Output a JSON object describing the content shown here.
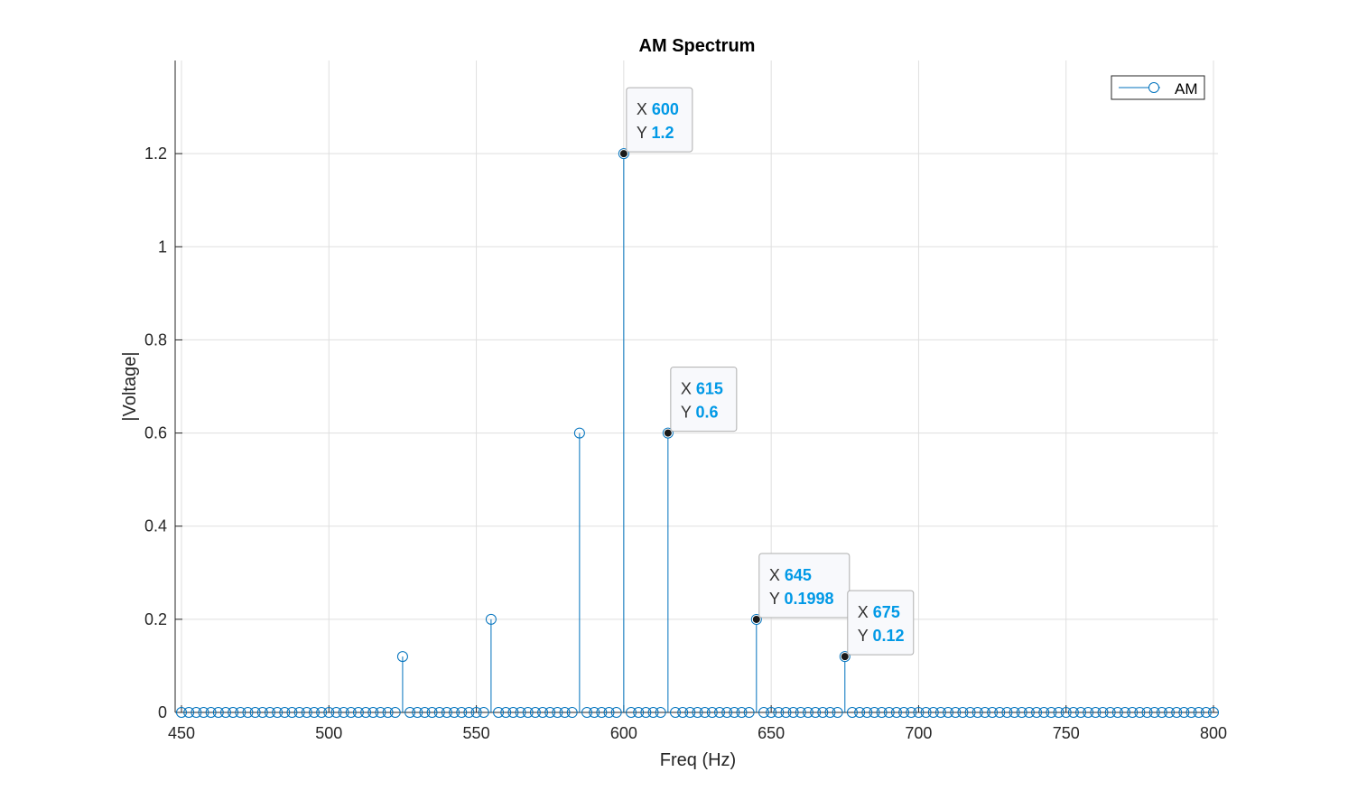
{
  "chart_data": {
    "type": "stem",
    "title": "AM Spectrum",
    "xlabel": "Freq (Hz)",
    "ylabel": "|Voltage|",
    "xlim": [
      450,
      800
    ],
    "ylim": [
      0,
      1.4
    ],
    "xticks": [
      450,
      500,
      550,
      600,
      650,
      700,
      750,
      800
    ],
    "yticks": [
      0,
      0.2,
      0.4,
      0.6,
      0.8,
      1,
      1.2
    ],
    "ytick_labels": [
      "0",
      "0.2",
      "0.4",
      "0.6",
      "0.8",
      "1",
      "1.2"
    ],
    "grid": true,
    "legend": {
      "entries": [
        "AM"
      ],
      "location": "top-right"
    },
    "series": [
      {
        "name": "AM",
        "color": "#0072BD",
        "marker": "circle",
        "x_start": 450,
        "x_end": 800,
        "x_step": 2.5,
        "baseline": 0,
        "peaks": [
          {
            "x": 525,
            "y": 0.12
          },
          {
            "x": 555,
            "y": 0.2
          },
          {
            "x": 585,
            "y": 0.6
          },
          {
            "x": 600,
            "y": 1.2
          },
          {
            "x": 615,
            "y": 0.6
          },
          {
            "x": 645,
            "y": 0.1998
          },
          {
            "x": 675,
            "y": 0.12
          }
        ]
      }
    ],
    "datatips": [
      {
        "x": "600",
        "y": "1.2"
      },
      {
        "x": "615",
        "y": "0.6"
      },
      {
        "x": "645",
        "y": "0.1998"
      },
      {
        "x": "675",
        "y": "0.12"
      }
    ],
    "datatip_labels": {
      "x": "X",
      "y": "Y"
    },
    "colors": {
      "series": "#0072BD",
      "datatip_value": "#0099E6",
      "grid": "#DFDFDF"
    }
  }
}
